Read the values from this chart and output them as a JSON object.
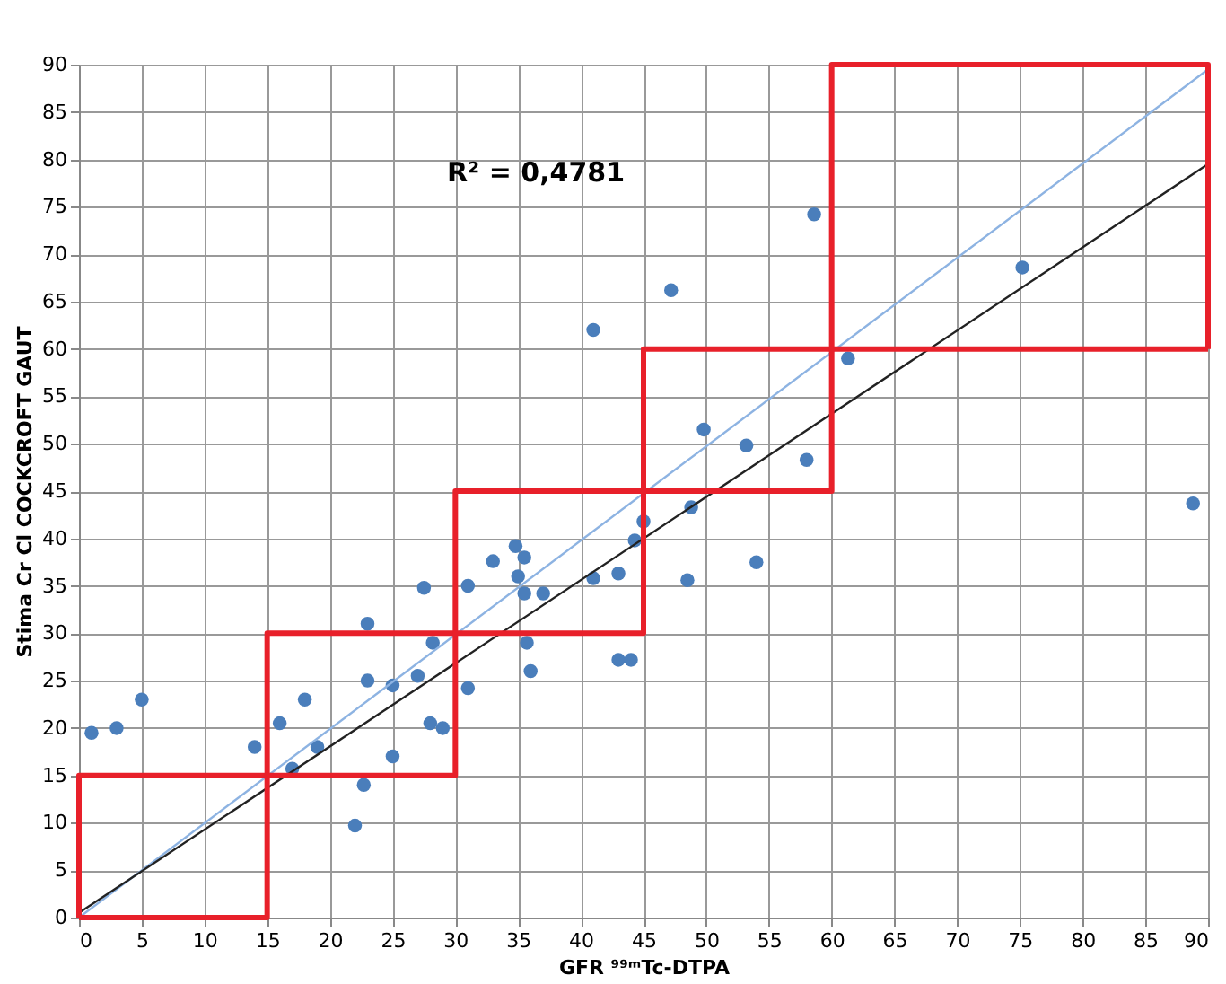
{
  "chart_data": {
    "type": "scatter",
    "xlabel": "GFR ⁹⁹ᵐTc-DTPA",
    "ylabel": "Stima  Cr Cl COCKCROFT GAUT",
    "xlim": [
      0,
      90
    ],
    "ylim": [
      0,
      90
    ],
    "xticks": [
      0,
      5,
      10,
      15,
      20,
      25,
      30,
      35,
      40,
      45,
      50,
      55,
      60,
      65,
      70,
      75,
      80,
      85,
      90
    ],
    "yticks": [
      0,
      5,
      10,
      15,
      20,
      25,
      30,
      35,
      40,
      45,
      50,
      55,
      60,
      65,
      70,
      75,
      80,
      85,
      90
    ],
    "grid": true,
    "annotations": [
      "R² = 0,4781"
    ],
    "series": [
      {
        "color": "#4a7ebb",
        "marker": "circle",
        "x": [
          1,
          3,
          5,
          14,
          16,
          17,
          18,
          19,
          22,
          22.7,
          23,
          23,
          25,
          25,
          27,
          27.5,
          28,
          28.2,
          29,
          31,
          31,
          33,
          34.8,
          35,
          35.5,
          35.5,
          35.7,
          36,
          37,
          41,
          41,
          43,
          43,
          44,
          44.3,
          45,
          47.2,
          48.5,
          48.8,
          49.8,
          53.2,
          54,
          58,
          58.6,
          61.3,
          75.2,
          88.8
        ],
        "values": [
          19.5,
          20,
          23,
          18,
          20.5,
          15.7,
          23,
          18,
          9.7,
          14,
          25,
          31,
          17,
          24.5,
          25.5,
          34.8,
          20.5,
          29,
          20,
          24.2,
          35,
          37.6,
          39.2,
          36,
          34.2,
          38,
          29,
          26,
          34.2,
          62,
          35.8,
          36.3,
          27.2,
          27.2,
          39.8,
          41.8,
          66.2,
          35.6,
          43.3,
          51.5,
          49.8,
          37.5,
          48.3,
          74.2,
          59,
          68.6,
          43.7
        ]
      },
      {
        "type": "line",
        "color": "#8db3e2",
        "marker": "none",
        "x": [
          0,
          90
        ],
        "values": [
          0,
          89.5
        ]
      },
      {
        "type": "line",
        "color": "#222222",
        "marker": "none",
        "x": [
          0,
          90
        ],
        "values": [
          0.5,
          79.5
        ]
      },
      {
        "type": "line",
        "color": "#e8202a",
        "marker": "none",
        "x": [
          0,
          0,
          15,
          15,
          30,
          30,
          45,
          45,
          60,
          60,
          90,
          90
        ],
        "values": [
          0,
          15,
          15,
          30,
          30,
          45,
          45,
          60,
          60,
          90,
          90,
          60
        ]
      },
      {
        "type": "line",
        "color": "#e8202a",
        "marker": "none",
        "x": [
          0,
          15,
          15,
          30,
          30,
          45,
          45,
          60,
          60,
          90
        ],
        "values": [
          0,
          0,
          15,
          15,
          30,
          30,
          45,
          45,
          60,
          60
        ]
      }
    ]
  }
}
